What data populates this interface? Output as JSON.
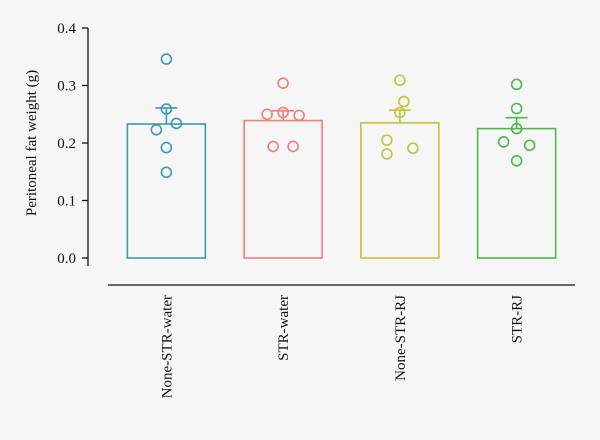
{
  "chart_data": {
    "type": "bar",
    "title": "",
    "xlabel": "",
    "ylabel": "Peritoneal fat weight (g)",
    "ylim": [
      0,
      0.4
    ],
    "yticks": [
      "0.0",
      "0.1",
      "0.2",
      "0.3",
      "0.4"
    ],
    "grid": false,
    "legend": "none",
    "categories": [
      "None-STR-water",
      "STR-water",
      "None-STR-RJ",
      "STR-RJ"
    ],
    "values": [
      0.233,
      0.239,
      0.235,
      0.225
    ],
    "error_upper": [
      0.261,
      0.256,
      0.257,
      0.244
    ],
    "colors": [
      "#3b9ab2",
      "#f07f78",
      "#c2c43a",
      "#4cb84a"
    ],
    "points": [
      [
        0.346,
        0.259,
        0.223,
        0.234,
        0.192,
        0.149
      ],
      [
        0.304,
        0.25,
        0.253,
        0.248,
        0.194,
        0.194
      ],
      [
        0.309,
        0.272,
        0.253,
        0.205,
        0.181,
        0.191
      ],
      [
        0.302,
        0.26,
        0.225,
        0.202,
        0.196,
        0.169
      ]
    ]
  }
}
